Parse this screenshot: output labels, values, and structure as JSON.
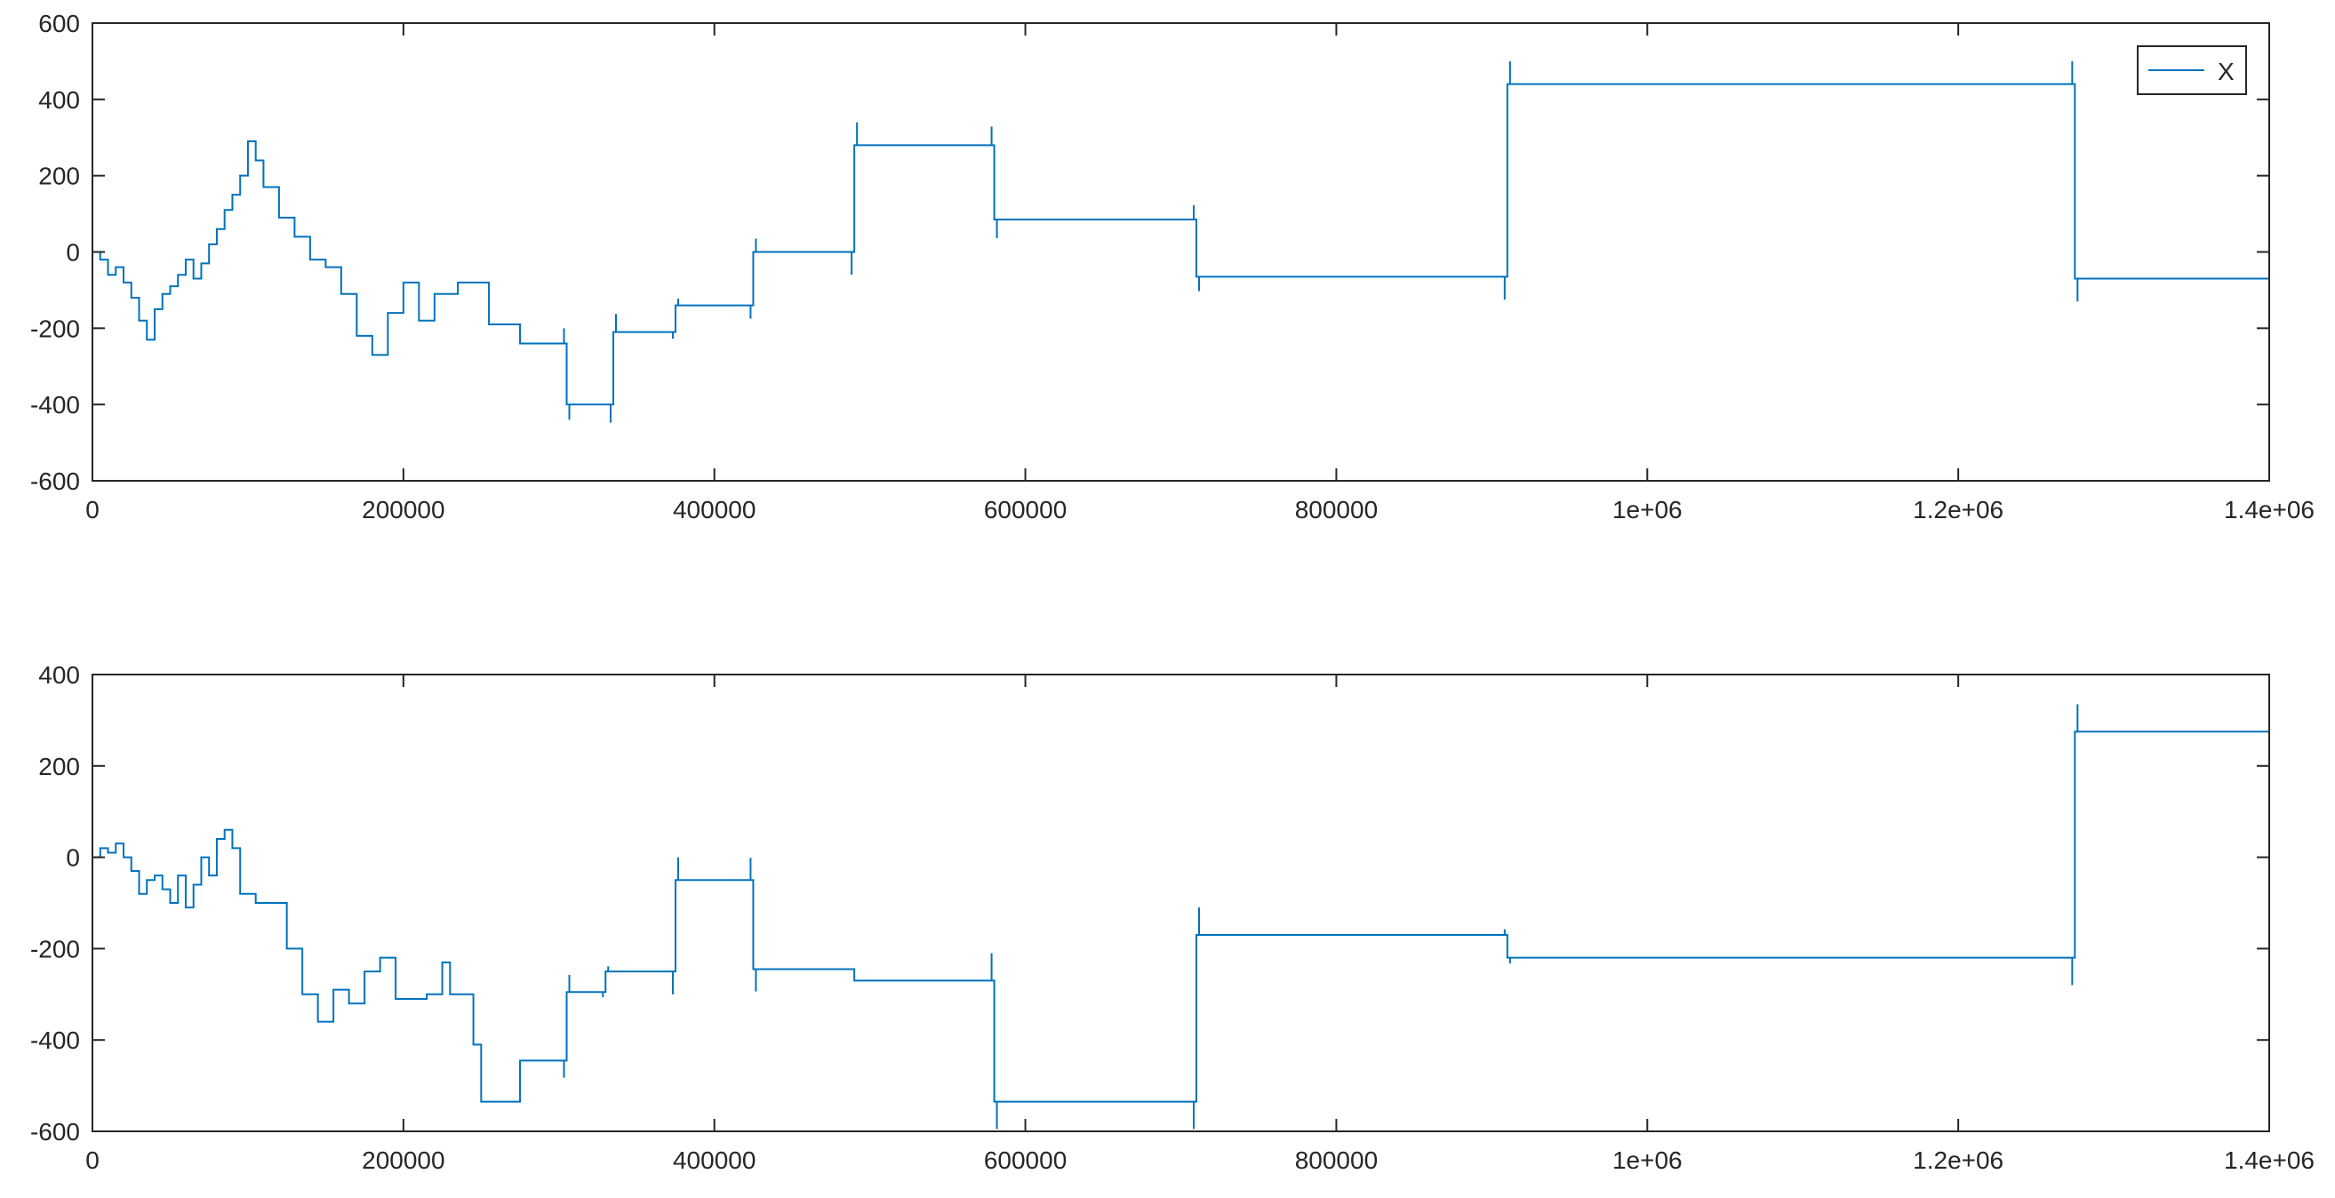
{
  "chart_data": [
    {
      "type": "line",
      "title": "",
      "xlabel": "",
      "ylabel": "",
      "xlim": [
        0,
        1400000
      ],
      "ylim": [
        -600,
        600
      ],
      "xticks": [
        0,
        200000,
        400000,
        600000,
        800000,
        1000000,
        1200000,
        1400000
      ],
      "xtick_labels": [
        "0",
        "200000",
        "400000",
        "600000",
        "800000",
        "1e+06",
        "1.2e+06",
        "1.4e+06"
      ],
      "yticks": [
        -600,
        -400,
        -200,
        0,
        200,
        400,
        600
      ],
      "ytick_labels": [
        "-600",
        "-400",
        "-200",
        "0",
        "200",
        "400",
        "600"
      ],
      "grid": false,
      "legend": {
        "entries": [
          "X"
        ],
        "position": "northeast"
      },
      "series": [
        {
          "name": "X",
          "color": "#0072BD",
          "x": [
            0,
            5000,
            10000,
            15000,
            20000,
            25000,
            30000,
            35000,
            40000,
            45000,
            50000,
            55000,
            60000,
            65000,
            70000,
            75000,
            80000,
            85000,
            90000,
            95000,
            100000,
            105000,
            110000,
            120000,
            130000,
            140000,
            150000,
            160000,
            170000,
            180000,
            190000,
            200000,
            210000,
            220000,
            235000,
            255000,
            275000,
            305000,
            335000,
            375000,
            425000,
            490000,
            580000,
            710000,
            910000,
            1275000,
            1400000
          ],
          "y": [
            0,
            -20,
            -60,
            -40,
            -80,
            -120,
            -180,
            -230,
            -150,
            -110,
            -90,
            -60,
            -20,
            -70,
            -30,
            20,
            60,
            110,
            150,
            200,
            290,
            240,
            170,
            90,
            40,
            -20,
            -40,
            -110,
            -220,
            -270,
            -160,
            -80,
            -180,
            -110,
            -80,
            -190,
            -240,
            -400,
            -210,
            -140,
            0,
            280,
            85,
            -65,
            440,
            -70,
            -70
          ]
        }
      ]
    },
    {
      "type": "line",
      "title": "",
      "xlabel": "",
      "ylabel": "",
      "xlim": [
        0,
        1400000
      ],
      "ylim": [
        -600,
        400
      ],
      "xticks": [
        0,
        200000,
        400000,
        600000,
        800000,
        1000000,
        1200000,
        1400000
      ],
      "xtick_labels": [
        "0",
        "200000",
        "400000",
        "600000",
        "800000",
        "1e+06",
        "1.2e+06",
        "1.4e+06"
      ],
      "yticks": [
        -600,
        -400,
        -200,
        0,
        200,
        400
      ],
      "ytick_labels": [
        "-600",
        "-400",
        "-200",
        "0",
        "200",
        "400"
      ],
      "grid": false,
      "legend": null,
      "series": [
        {
          "name": "",
          "color": "#0072BD",
          "x": [
            0,
            5000,
            10000,
            15000,
            20000,
            25000,
            30000,
            35000,
            40000,
            45000,
            50000,
            55000,
            60000,
            65000,
            70000,
            75000,
            80000,
            85000,
            90000,
            95000,
            105000,
            115000,
            125000,
            135000,
            145000,
            155000,
            165000,
            175000,
            185000,
            195000,
            215000,
            225000,
            230000,
            245000,
            250000,
            275000,
            305000,
            330000,
            375000,
            425000,
            490000,
            580000,
            710000,
            910000,
            1275000,
            1400000
          ],
          "y": [
            0,
            20,
            10,
            30,
            0,
            -30,
            -80,
            -50,
            -40,
            -70,
            -100,
            -40,
            -110,
            -60,
            0,
            -40,
            40,
            60,
            20,
            -80,
            -100,
            -100,
            -200,
            -300,
            -360,
            -290,
            -320,
            -250,
            -220,
            -310,
            -300,
            -230,
            -300,
            -410,
            -535,
            -445,
            -295,
            -250,
            -50,
            -245,
            -270,
            -535,
            -170,
            -220,
            275,
            275
          ]
        }
      ]
    }
  ],
  "legend": {
    "label": "X"
  },
  "axes": {
    "top": {
      "ytick_labels": [
        "600",
        "400",
        "200",
        "0",
        "-200",
        "-400",
        "-600"
      ]
    },
    "bottom": {
      "ytick_labels": [
        "400",
        "200",
        "0",
        "-200",
        "-400",
        "-600"
      ]
    },
    "xtick_labels": [
      "0",
      "200000",
      "400000",
      "600000",
      "800000",
      "1e+06",
      "1.2e+06",
      "1.4e+06"
    ]
  }
}
